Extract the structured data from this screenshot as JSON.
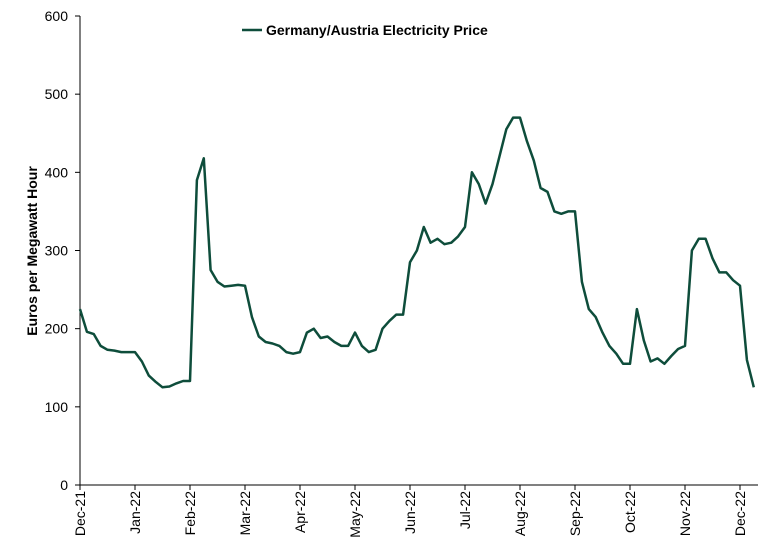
{
  "chart_data": {
    "type": "line",
    "ylabel": "Euros per Megawatt Hour",
    "categories": [
      "Dec-21",
      null,
      null,
      null,
      null,
      null,
      null,
      null,
      "Jan-22",
      null,
      null,
      null,
      null,
      null,
      null,
      null,
      "Feb-22",
      null,
      null,
      null,
      null,
      null,
      null,
      null,
      "Mar-22",
      null,
      null,
      null,
      null,
      null,
      null,
      null,
      "Apr-22",
      null,
      null,
      null,
      null,
      null,
      null,
      null,
      "May-22",
      null,
      null,
      null,
      null,
      null,
      null,
      null,
      "Jun-22",
      null,
      null,
      null,
      null,
      null,
      null,
      null,
      "Jul-22",
      null,
      null,
      null,
      null,
      null,
      null,
      null,
      "Aug-22",
      null,
      null,
      null,
      null,
      null,
      null,
      null,
      "Sep-22",
      null,
      null,
      null,
      null,
      null,
      null,
      null,
      "Oct-22",
      null,
      null,
      null,
      null,
      null,
      null,
      null,
      "Nov-22",
      null,
      null,
      null,
      null,
      null,
      null,
      null,
      "Dec-22",
      null,
      null
    ],
    "series": [
      {
        "name": "Germany/Austria Electricity Price",
        "color": "#0e4d3b",
        "values": [
          225,
          196,
          193,
          178,
          173,
          172,
          170,
          170,
          170,
          158,
          140,
          132,
          125,
          126,
          130,
          133,
          133,
          390,
          418,
          275,
          260,
          254,
          255,
          256,
          255,
          215,
          190,
          183,
          181,
          178,
          170,
          168,
          170,
          195,
          200,
          188,
          190,
          183,
          178,
          178,
          195,
          178,
          170,
          173,
          200,
          210,
          218,
          218,
          285,
          300,
          330,
          310,
          315,
          308,
          310,
          318,
          330,
          400,
          385,
          360,
          385,
          420,
          455,
          470,
          470,
          440,
          415,
          380,
          375,
          350,
          347,
          350,
          350,
          260,
          225,
          215,
          195,
          178,
          168,
          155,
          155,
          225,
          185,
          158,
          162,
          155,
          165,
          174,
          178,
          300,
          315,
          315,
          290,
          272,
          272,
          262,
          255,
          160,
          125
        ]
      }
    ],
    "ylim": [
      0,
      600
    ],
    "yticks": [
      0,
      100,
      200,
      300,
      400,
      500,
      600
    ],
    "grid": false,
    "legend": "top"
  }
}
